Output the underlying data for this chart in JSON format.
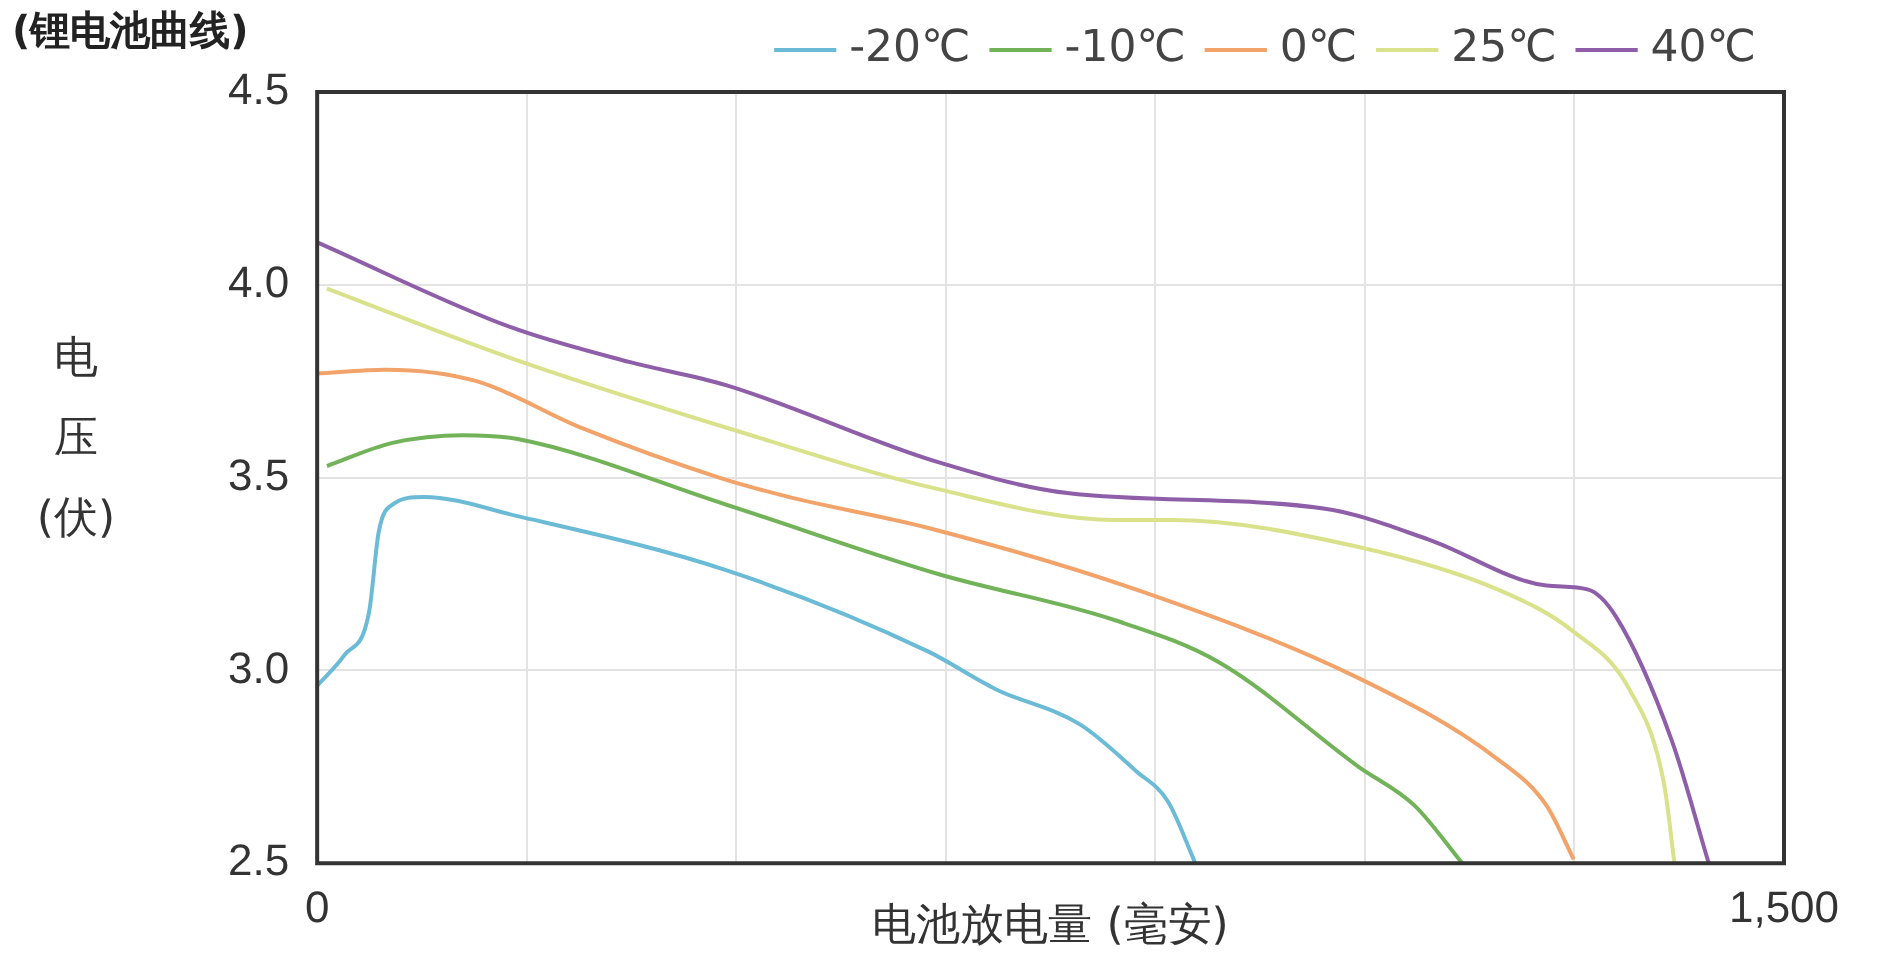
{
  "chart_data": {
    "type": "line",
    "title": "(锂电池曲线)",
    "xlabel": "电池放电量 (毫安)",
    "ylabel": "电压 (伏)",
    "xlim": [
      0,
      1500
    ],
    "xticks": [
      0,
      {
        "value": 214.29,
        "label": null
      },
      {
        "value": 428.57,
        "label": null
      },
      {
        "value": 642.86,
        "label": null
      },
      {
        "value": 857.14,
        "label": null
      },
      {
        "value": 1071.43,
        "label": null
      },
      {
        "value": 1285.71,
        "label": null
      },
      {
        "value": 1500,
        "label": "1,500"
      }
    ],
    "ylim": [
      2.5,
      4.5
    ],
    "yticks": [
      2.5,
      {
        "value": 3,
        "label": "3.0"
      },
      3.5,
      {
        "value": 4,
        "label": "4.0"
      },
      4.5
    ],
    "grid": true,
    "legend": "top right",
    "line_style": "solid",
    "marker": "none",
    "series": [
      {
        "name": "-20℃",
        "color": "#6bbbd6",
        "x": [
          0,
          28,
          53,
          63,
          77,
          109,
          205,
          418,
          624,
          695,
          780,
          837,
          870,
          898
        ],
        "values": [
          2.96,
          3.04,
          3.15,
          3.36,
          3.43,
          3.45,
          3.4,
          3.26,
          3.05,
          2.95,
          2.86,
          2.74,
          2.66,
          2.5
        ]
      },
      {
        "name": "-10℃",
        "color": "#72b35a",
        "x": [
          10,
          77,
          149,
          205,
          418,
          635,
          816,
          923,
          1065,
          1122,
          1171
        ],
        "values": [
          3.53,
          3.59,
          3.61,
          3.6,
          3.43,
          3.25,
          3.13,
          3.02,
          2.75,
          2.65,
          2.5
        ]
      },
      {
        "name": "0℃",
        "color": "#f2a36a",
        "x": [
          0,
          70,
          163,
          269,
          411,
          482,
          624,
          837,
          1065,
          1207,
          1257,
          1285
        ],
        "values": [
          3.77,
          3.78,
          3.75,
          3.63,
          3.5,
          3.45,
          3.37,
          3.21,
          2.98,
          2.77,
          2.65,
          2.51
        ]
      },
      {
        "name": "25℃",
        "color": "#d9e28a",
        "x": [
          10,
          198,
          418,
          635,
          816,
          873,
          1065,
          1207,
          1285,
          1342,
          1377,
          1388
        ],
        "values": [
          3.99,
          3.81,
          3.63,
          3.47,
          3.39,
          3.39,
          3.32,
          3.21,
          3.1,
          2.95,
          2.71,
          2.5
        ]
      },
      {
        "name": "40℃",
        "color": "#8e5ea8",
        "x": [
          0,
          198,
          319,
          418,
          635,
          767,
          1029,
          1136,
          1257,
          1299,
          1328,
          1385,
          1423
        ],
        "values": [
          4.11,
          3.89,
          3.8,
          3.74,
          3.54,
          3.46,
          3.42,
          3.34,
          3.22,
          3.21,
          3.14,
          2.82,
          2.5
        ]
      }
    ]
  }
}
